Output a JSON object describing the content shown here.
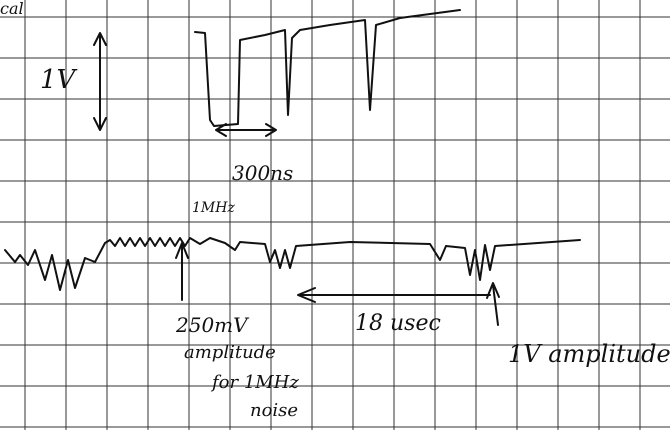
{
  "annotations": {
    "corner": "cal",
    "top_scale": "1V",
    "pulse_width": "300ns",
    "noise_freq": "1MHz",
    "noise_amplitude": [
      "250mV",
      "amplitude",
      "for 1MHz",
      "noise"
    ],
    "period": "18 usec",
    "spike_amplitude": "1V amplitude"
  }
}
